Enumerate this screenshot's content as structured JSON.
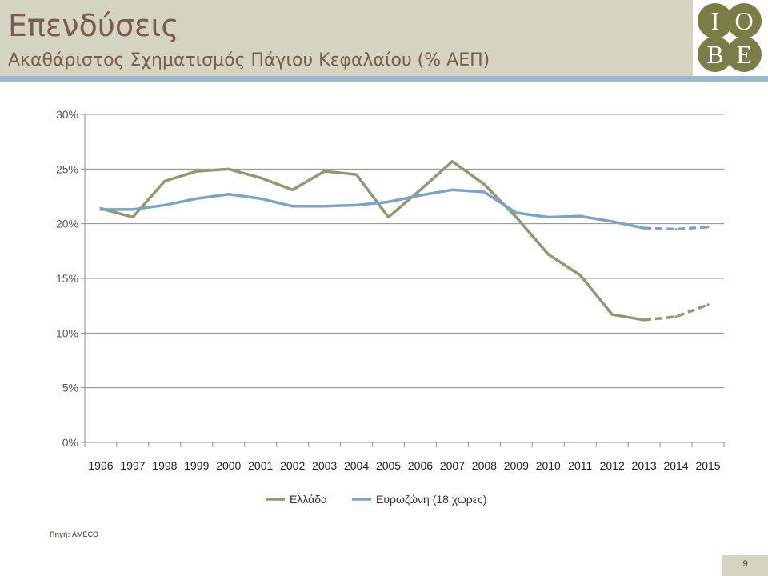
{
  "header": {
    "title": "Επενδύσεις",
    "subtitle": "Ακαθάριστος Σχηματισμός Πάγιου Κεφαλαίου (% ΑΕΠ)"
  },
  "logo": {
    "letters": [
      "I",
      "O",
      "B",
      "E"
    ],
    "color": "#7a7d45"
  },
  "colors": {
    "header_bg": "#d5d3c1",
    "rule": "#9db8cc"
  },
  "source": {
    "label": "Πηγή:",
    "value": "AMECO"
  },
  "page_number": "9",
  "chart_data": {
    "type": "line",
    "categories": [
      "1996",
      "1997",
      "1998",
      "1999",
      "2000",
      "2001",
      "2002",
      "2003",
      "2004",
      "2005",
      "2006",
      "2007",
      "2008",
      "2009",
      "2010",
      "2011",
      "2012",
      "2013",
      "2014",
      "2015"
    ],
    "ylim": [
      0,
      30
    ],
    "yticks": [
      "0%",
      "5%",
      "10%",
      "15%",
      "20%",
      "25%",
      "30%"
    ],
    "grid": true,
    "legend_position": "bottom",
    "forecast_from_index": 17,
    "series": [
      {
        "name": "Ελλάδα",
        "color": "#8f9a72",
        "values": [
          21.4,
          20.6,
          23.9,
          24.8,
          25.0,
          24.2,
          23.1,
          24.8,
          24.5,
          20.6,
          23.1,
          25.7,
          23.6,
          20.6,
          17.2,
          15.3,
          11.7,
          11.2,
          11.5,
          12.6
        ]
      },
      {
        "name": "Ευρωζώνη (18 χώρες)",
        "color": "#7fa3c3",
        "values": [
          21.3,
          21.3,
          21.7,
          22.3,
          22.7,
          22.3,
          21.6,
          21.6,
          21.7,
          22.0,
          22.6,
          23.1,
          22.9,
          21.0,
          20.6,
          20.7,
          20.2,
          19.6,
          19.5,
          19.7
        ]
      }
    ]
  }
}
